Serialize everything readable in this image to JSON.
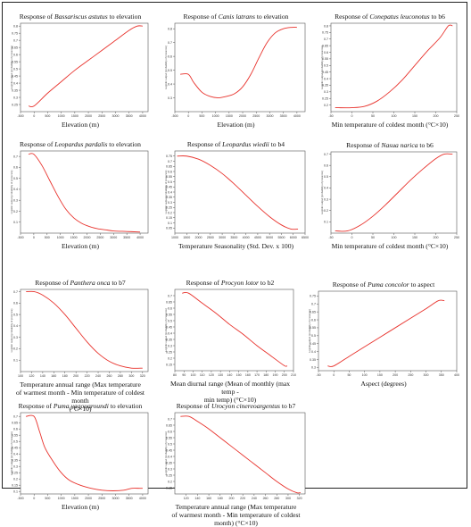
{
  "chart_data": [
    {
      "type": "line",
      "title": "Response of Bassariscus astutus to elevation",
      "title_species": "Bassariscus astutus",
      "title_pre": "Response of ",
      "title_post": " to elevation",
      "xlabel": "Elevation (m)",
      "ylabel": "Logistic output (probability of presence)",
      "xlim": [
        -500,
        4200
      ],
      "ylim": [
        0.2,
        0.82
      ],
      "xticks": [
        -500,
        0,
        500,
        1000,
        1500,
        2000,
        2500,
        3000,
        3500,
        4000
      ],
      "yticks": [
        0.25,
        0.3,
        0.35,
        0.4,
        0.45,
        0.5,
        0.55,
        0.6,
        0.65,
        0.7,
        0.75,
        0.8
      ],
      "series": [
        {
          "x": [
            -200,
            0,
            500,
            1000,
            1500,
            2000,
            2500,
            3000,
            3500,
            3800,
            4000
          ],
          "y": [
            0.24,
            0.24,
            0.33,
            0.41,
            0.49,
            0.56,
            0.63,
            0.7,
            0.77,
            0.8,
            0.8
          ]
        }
      ]
    },
    {
      "type": "line",
      "title": "Response of Canis latrans to elevation",
      "title_species": "Canis latrans",
      "title_pre": "Response of ",
      "title_post": " to elevation",
      "xlabel": "Elevation  (m)",
      "ylabel": "Logistic output (probability of presence)",
      "xlim": [
        -500,
        4300
      ],
      "ylim": [
        0.2,
        0.84
      ],
      "xticks": [
        -500,
        0,
        500,
        1000,
        1500,
        2000,
        2500,
        3000,
        3500,
        4000
      ],
      "yticks": [
        0.3,
        0.4,
        0.5,
        0.6,
        0.7,
        0.8
      ],
      "series": [
        {
          "x": [
            -300,
            0,
            200,
            500,
            800,
            1100,
            1400,
            1700,
            2000,
            2300,
            2600,
            2900,
            3200,
            3500,
            3800,
            4000
          ],
          "y": [
            0.47,
            0.47,
            0.41,
            0.34,
            0.31,
            0.3,
            0.31,
            0.33,
            0.38,
            0.47,
            0.59,
            0.7,
            0.77,
            0.8,
            0.81,
            0.81
          ]
        }
      ]
    },
    {
      "type": "line",
      "title": "Response of Conepatus leuconotus to b6",
      "title_species": "Conepatus leuconotus",
      "title_pre": "Response of ",
      "title_post": " to b6",
      "xlabel": "Min temperature of coldest month   (°C×10)",
      "ylabel": "Logistic output (probability of presence)",
      "xlim": [
        -50,
        250
      ],
      "ylim": [
        0.15,
        0.82
      ],
      "xticks": [
        -50,
        0,
        50,
        100,
        150,
        200,
        250
      ],
      "yticks": [
        0.2,
        0.25,
        0.3,
        0.35,
        0.4,
        0.45,
        0.5,
        0.55,
        0.6,
        0.65,
        0.7,
        0.75,
        0.8
      ],
      "series": [
        {
          "x": [
            -40,
            0,
            30,
            60,
            90,
            120,
            150,
            180,
            210,
            230,
            240
          ],
          "y": [
            0.18,
            0.18,
            0.19,
            0.23,
            0.3,
            0.39,
            0.5,
            0.61,
            0.71,
            0.8,
            0.8
          ]
        }
      ]
    },
    {
      "type": "line",
      "title": "Response of Leopardus pardalis to elevation",
      "title_species": "Leopardus pardalis",
      "title_pre": "Response of ",
      "title_post": " to elevation",
      "xlabel": "Elevation (m)",
      "ylabel": "Logistic output (probability of presence)",
      "xlim": [
        -500,
        4300
      ],
      "ylim": [
        0,
        0.75
      ],
      "xticks": [
        -500,
        0,
        500,
        1000,
        1500,
        2000,
        2500,
        3000,
        3500,
        4000
      ],
      "yticks": [
        0.1,
        0.2,
        0.3,
        0.4,
        0.5,
        0.6,
        0.7
      ],
      "series": [
        {
          "x": [
            -200,
            0,
            300,
            600,
            900,
            1200,
            1500,
            1800,
            2100,
            2400,
            2700,
            3000,
            3500,
            4000
          ],
          "y": [
            0.72,
            0.72,
            0.62,
            0.48,
            0.34,
            0.22,
            0.14,
            0.09,
            0.06,
            0.04,
            0.03,
            0.02,
            0.015,
            0.01
          ]
        }
      ]
    },
    {
      "type": "line",
      "title": "Response of Leopardus wiedii to b4",
      "title_species": "Leopardus wiedii",
      "title_pre": "Response of ",
      "title_post": " to b4",
      "xlabel": "Temperature Seasonality (Std. Dev. x 100)",
      "ylabel": "Logistic output (probability of presence)",
      "xlim": [
        1000,
        6500
      ],
      "ylim": [
        0,
        0.8
      ],
      "xticks": [
        1000,
        1500,
        2000,
        2500,
        3000,
        3500,
        4000,
        4500,
        5000,
        5500,
        6000,
        6500
      ],
      "yticks": [
        0.05,
        0.1,
        0.15,
        0.2,
        0.25,
        0.3,
        0.35,
        0.4,
        0.45,
        0.5,
        0.55,
        0.6,
        0.65,
        0.7,
        0.75
      ],
      "series": [
        {
          "x": [
            1100,
            1500,
            2000,
            2500,
            3000,
            3500,
            4000,
            4500,
            5000,
            5500,
            5900,
            6200
          ],
          "y": [
            0.75,
            0.75,
            0.72,
            0.66,
            0.58,
            0.48,
            0.37,
            0.26,
            0.16,
            0.08,
            0.04,
            0.04
          ]
        }
      ]
    },
    {
      "type": "line",
      "title": "Response of Nasua narica to b6",
      "title_species": "Nasua narica",
      "title_pre": "Response of ",
      "title_post": " to b6",
      "xlabel": "Min temperature of coldest month   (°C×10)",
      "ylabel": "Logistic output (probability of presence)",
      "xlim": [
        -50,
        250
      ],
      "ylim": [
        0,
        0.72
      ],
      "xticks": [
        -50,
        0,
        50,
        100,
        150,
        200,
        250
      ],
      "yticks": [
        0.1,
        0.2,
        0.3,
        0.4,
        0.5,
        0.6,
        0.7
      ],
      "series": [
        {
          "x": [
            -40,
            -10,
            20,
            50,
            80,
            110,
            140,
            170,
            200,
            220,
            240
          ],
          "y": [
            0.02,
            0.02,
            0.07,
            0.15,
            0.25,
            0.36,
            0.47,
            0.57,
            0.66,
            0.7,
            0.7
          ]
        }
      ]
    },
    {
      "type": "line",
      "title": "Response of Panthera onca to b7",
      "title_species": "Panthera onca",
      "title_pre": "Response of ",
      "title_post": " to b7",
      "xlabel": "Temperature annual range (Max temperature\nof warmest month - Min temperature of coldest month\n(°C×10)",
      "ylabel": "Logistic output (probability of presence)",
      "xlim": [
        100,
        330
      ],
      "ylim": [
        0,
        0.72
      ],
      "xticks": [
        100,
        120,
        140,
        160,
        180,
        200,
        220,
        240,
        260,
        280,
        300,
        320
      ],
      "yticks": [
        0.1,
        0.2,
        0.3,
        0.4,
        0.5,
        0.6,
        0.7
      ],
      "series": [
        {
          "x": [
            110,
            125,
            140,
            160,
            180,
            200,
            220,
            240,
            260,
            280,
            300,
            320
          ],
          "y": [
            0.7,
            0.7,
            0.67,
            0.6,
            0.5,
            0.38,
            0.26,
            0.16,
            0.09,
            0.05,
            0.03,
            0.03
          ]
        }
      ]
    },
    {
      "type": "line",
      "title": "Response of Procyon lotor to b2",
      "title_species": "Procyon lotor",
      "title_pre": "Response of ",
      "title_post": " to b2",
      "xlabel": "Mean diurnal range (Mean of monthly (max temp -\nmin temp) (°C×10)",
      "ylabel": "Logistic output (probability of presence)",
      "xlim": [
        80,
        210
      ],
      "ylim": [
        0.1,
        0.75
      ],
      "xticks": [
        80,
        90,
        100,
        110,
        120,
        130,
        140,
        150,
        160,
        170,
        180,
        190,
        200,
        210
      ],
      "yticks": [
        0.15,
        0.2,
        0.25,
        0.3,
        0.35,
        0.4,
        0.45,
        0.5,
        0.55,
        0.6,
        0.65,
        0.7
      ],
      "series": [
        {
          "x": [
            88,
            95,
            110,
            125,
            140,
            155,
            170,
            185,
            200,
            203
          ],
          "y": [
            0.72,
            0.72,
            0.64,
            0.56,
            0.47,
            0.39,
            0.3,
            0.22,
            0.14,
            0.14
          ]
        }
      ]
    },
    {
      "type": "line",
      "title": "Response of Puma concolor to aspect",
      "title_species": "Puma concolor",
      "title_pre": "Response of ",
      "title_post": " to aspect",
      "xlabel": "Aspect  (degrees)",
      "ylabel": "Logistic output (probability of presence)",
      "xlim": [
        -50,
        400
      ],
      "ylim": [
        0.28,
        0.78
      ],
      "xticks": [
        -50,
        0,
        50,
        100,
        150,
        200,
        250,
        300,
        350,
        400
      ],
      "yticks": [
        0.3,
        0.35,
        0.4,
        0.45,
        0.5,
        0.55,
        0.6,
        0.65,
        0.7,
        0.75
      ],
      "series": [
        {
          "x": [
            -20,
            0,
            50,
            100,
            150,
            200,
            250,
            300,
            340,
            360
          ],
          "y": [
            0.31,
            0.31,
            0.37,
            0.43,
            0.49,
            0.55,
            0.61,
            0.67,
            0.72,
            0.72
          ]
        }
      ]
    },
    {
      "type": "line",
      "title": "Response of Puma yagouaroundi to elevation",
      "title_species": "Puma yagouaroundi",
      "title_pre": "Response of ",
      "title_post": " to elevation",
      "xlabel": "Elevation (m)",
      "ylabel": "Logistic output (probability of presence)",
      "xlim": [
        -500,
        4200
      ],
      "ylim": [
        0.08,
        0.73
      ],
      "xticks": [
        -500,
        0,
        500,
        1000,
        1500,
        2000,
        2500,
        3000,
        3500,
        4000
      ],
      "yticks": [
        0.1,
        0.15,
        0.2,
        0.25,
        0.3,
        0.35,
        0.4,
        0.45,
        0.5,
        0.55,
        0.6,
        0.65,
        0.7
      ],
      "series": [
        {
          "x": [
            -300,
            0,
            200,
            400,
            700,
            1000,
            1300,
            1700,
            2100,
            2500,
            2900,
            3300,
            3600,
            3900,
            4000
          ],
          "y": [
            0.7,
            0.7,
            0.58,
            0.45,
            0.34,
            0.25,
            0.19,
            0.15,
            0.125,
            0.11,
            0.105,
            0.11,
            0.125,
            0.125,
            0.125
          ]
        }
      ]
    },
    {
      "type": "line",
      "title": "Response of Urocyon cinereoargentus to b7",
      "title_species": "Urocyon cinereoargentus",
      "title_pre": "Response of ",
      "title_post": " to b7",
      "xlabel": "Temperature annual range (Max temperature\nof warmest month - Min temperature of coldest month) (°C×10)",
      "ylabel": "Logistic output (probability of presence)",
      "xlim": [
        100,
        330
      ],
      "ylim": [
        0.1,
        0.75
      ],
      "xticks": [
        120,
        140,
        160,
        180,
        200,
        220,
        240,
        260,
        280,
        300,
        320
      ],
      "yticks": [
        0.15,
        0.2,
        0.25,
        0.3,
        0.35,
        0.4,
        0.45,
        0.5,
        0.55,
        0.6,
        0.65,
        0.7
      ],
      "series": [
        {
          "x": [
            110,
            125,
            140,
            160,
            180,
            200,
            220,
            240,
            260,
            280,
            300,
            315,
            322
          ],
          "y": [
            0.72,
            0.72,
            0.68,
            0.62,
            0.55,
            0.48,
            0.41,
            0.34,
            0.27,
            0.2,
            0.14,
            0.11,
            0.11
          ]
        }
      ]
    }
  ]
}
